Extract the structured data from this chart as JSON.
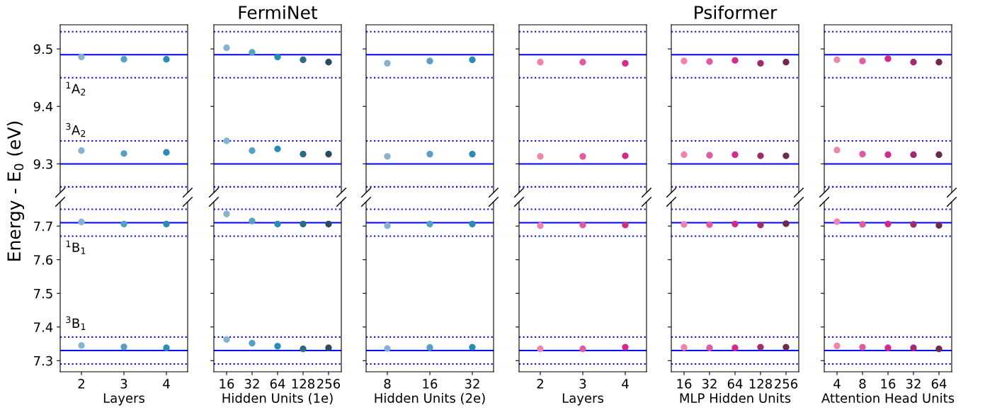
{
  "chart_data": [
    {
      "type": "scatter",
      "ylabel": "Energy - E$_{0}$ (eV)",
      "categories": [
        "2",
        "3",
        "4"
      ],
      "marker": "circle",
      "tick_labels": "y",
      "ylim": [
        9.25,
        9.542
      ],
      "yticks": [
        9.3,
        9.4,
        9.5
      ],
      "annotations": [
        "$^{1}$A$_{2}$",
        "$^{3}$A$_{2}$"
      ],
      "ref_lines": [
        {
          "axis": "y",
          "value": 9.53,
          "color": "#0000ff",
          "line_style": "dotted"
        },
        {
          "axis": "y",
          "value": 9.49,
          "color": "#0000ff",
          "line_style": "solid"
        },
        {
          "axis": "y",
          "value": 9.45,
          "color": "#0000ff",
          "line_style": "dotted"
        },
        {
          "axis": "y",
          "value": 9.34,
          "color": "#0000ff",
          "line_style": "dotted"
        },
        {
          "axis": "y",
          "value": 9.3,
          "color": "#0000ff",
          "line_style": "solid"
        },
        {
          "axis": "y",
          "value": 9.26,
          "color": "#0000ff",
          "line_style": "dotted"
        }
      ],
      "series": [
        {
          "values": [
            9.486,
            9.482,
            9.482
          ],
          "colors": [
            "#86b2d3",
            "#55a0c4",
            "#2a8bb3"
          ]
        },
        {
          "values": [
            9.323,
            9.318,
            9.32
          ],
          "colors": [
            "#86b2d3",
            "#55a0c4",
            "#2a8bb3"
          ]
        }
      ]
    },
    {
      "type": "scatter",
      "title": "FermiNet",
      "categories": [
        "16",
        "32",
        "64",
        "128",
        "256"
      ],
      "marker": "circle",
      "tick_labels": false,
      "ylim": [
        9.25,
        9.542
      ],
      "yticks": [
        9.3,
        9.4,
        9.5
      ],
      "ref_lines": [
        {
          "axis": "y",
          "value": 9.53,
          "color": "#0000ff",
          "line_style": "dotted"
        },
        {
          "axis": "y",
          "value": 9.49,
          "color": "#0000ff",
          "line_style": "solid"
        },
        {
          "axis": "y",
          "value": 9.45,
          "color": "#0000ff",
          "line_style": "dotted"
        },
        {
          "axis": "y",
          "value": 9.34,
          "color": "#0000ff",
          "line_style": "dotted"
        },
        {
          "axis": "y",
          "value": 9.3,
          "color": "#0000ff",
          "line_style": "solid"
        },
        {
          "axis": "y",
          "value": 9.26,
          "color": "#0000ff",
          "line_style": "dotted"
        }
      ],
      "series": [
        {
          "values": [
            9.502,
            9.494,
            9.486,
            9.481,
            9.477
          ],
          "colors": [
            "#86b2d3",
            "#55a0c4",
            "#2a8bb3",
            "#2a6c85",
            "#2b4a5a"
          ]
        },
        {
          "values": [
            9.34,
            9.323,
            9.326,
            9.317,
            9.317
          ],
          "colors": [
            "#86b2d3",
            "#55a0c4",
            "#2a8bb3",
            "#2a6c85",
            "#2b4a5a"
          ]
        }
      ]
    },
    {
      "type": "scatter",
      "categories": [
        "8",
        "16",
        "32"
      ],
      "marker": "circle",
      "tick_labels": false,
      "ylim": [
        9.25,
        9.542
      ],
      "yticks": [
        9.3,
        9.4,
        9.5
      ],
      "ref_lines": [
        {
          "axis": "y",
          "value": 9.53,
          "color": "#0000ff",
          "line_style": "dotted"
        },
        {
          "axis": "y",
          "value": 9.49,
          "color": "#0000ff",
          "line_style": "solid"
        },
        {
          "axis": "y",
          "value": 9.45,
          "color": "#0000ff",
          "line_style": "dotted"
        },
        {
          "axis": "y",
          "value": 9.34,
          "color": "#0000ff",
          "line_style": "dotted"
        },
        {
          "axis": "y",
          "value": 9.3,
          "color": "#0000ff",
          "line_style": "solid"
        },
        {
          "axis": "y",
          "value": 9.26,
          "color": "#0000ff",
          "line_style": "dotted"
        }
      ],
      "series": [
        {
          "values": [
            9.475,
            9.479,
            9.481
          ],
          "colors": [
            "#86b2d3",
            "#55a0c4",
            "#2a8bb3"
          ]
        },
        {
          "values": [
            9.313,
            9.317,
            9.317
          ],
          "colors": [
            "#86b2d3",
            "#55a0c4",
            "#2a8bb3"
          ]
        }
      ]
    },
    {
      "type": "scatter",
      "categories": [
        "2",
        "3",
        "4"
      ],
      "marker": "circle",
      "tick_labels": false,
      "ylim": [
        9.25,
        9.542
      ],
      "yticks": [
        9.3,
        9.4,
        9.5
      ],
      "ref_lines": [
        {
          "axis": "y",
          "value": 9.53,
          "color": "#0000ff",
          "line_style": "dotted"
        },
        {
          "axis": "y",
          "value": 9.49,
          "color": "#0000ff",
          "line_style": "solid"
        },
        {
          "axis": "y",
          "value": 9.45,
          "color": "#0000ff",
          "line_style": "dotted"
        },
        {
          "axis": "y",
          "value": 9.34,
          "color": "#0000ff",
          "line_style": "dotted"
        },
        {
          "axis": "y",
          "value": 9.3,
          "color": "#0000ff",
          "line_style": "solid"
        },
        {
          "axis": "y",
          "value": 9.26,
          "color": "#0000ff",
          "line_style": "dotted"
        }
      ],
      "series": [
        {
          "values": [
            9.477,
            9.477,
            9.475
          ],
          "colors": [
            "#ec86ae",
            "#e05ba0",
            "#d42a8c"
          ]
        },
        {
          "values": [
            9.313,
            9.313,
            9.314
          ],
          "colors": [
            "#ec86ae",
            "#e05ba0",
            "#d42a8c"
          ]
        }
      ]
    },
    {
      "type": "scatter",
      "title": "Psiformer",
      "categories": [
        "16",
        "32",
        "64",
        "128",
        "256"
      ],
      "marker": "circle",
      "tick_labels": false,
      "ylim": [
        9.25,
        9.542
      ],
      "yticks": [
        9.3,
        9.4,
        9.5
      ],
      "ref_lines": [
        {
          "axis": "y",
          "value": 9.53,
          "color": "#0000ff",
          "line_style": "dotted"
        },
        {
          "axis": "y",
          "value": 9.49,
          "color": "#0000ff",
          "line_style": "solid"
        },
        {
          "axis": "y",
          "value": 9.45,
          "color": "#0000ff",
          "line_style": "dotted"
        },
        {
          "axis": "y",
          "value": 9.34,
          "color": "#0000ff",
          "line_style": "dotted"
        },
        {
          "axis": "y",
          "value": 9.3,
          "color": "#0000ff",
          "line_style": "solid"
        },
        {
          "axis": "y",
          "value": 9.26,
          "color": "#0000ff",
          "line_style": "dotted"
        }
      ],
      "series": [
        {
          "values": [
            9.479,
            9.478,
            9.48,
            9.475,
            9.477
          ],
          "colors": [
            "#ec86ae",
            "#e05ba0",
            "#d42a8c",
            "#a02c6e",
            "#6b2a4e"
          ]
        },
        {
          "values": [
            9.316,
            9.315,
            9.316,
            9.314,
            9.314
          ],
          "colors": [
            "#ec86ae",
            "#e05ba0",
            "#d42a8c",
            "#a02c6e",
            "#6b2a4e"
          ]
        }
      ]
    },
    {
      "type": "scatter",
      "categories": [
        "4",
        "8",
        "16",
        "32",
        "64"
      ],
      "marker": "circle",
      "tick_labels": false,
      "ylim": [
        9.25,
        9.542
      ],
      "yticks": [
        9.3,
        9.4,
        9.5
      ],
      "ref_lines": [
        {
          "axis": "y",
          "value": 9.53,
          "color": "#0000ff",
          "line_style": "dotted"
        },
        {
          "axis": "y",
          "value": 9.49,
          "color": "#0000ff",
          "line_style": "solid"
        },
        {
          "axis": "y",
          "value": 9.45,
          "color": "#0000ff",
          "line_style": "dotted"
        },
        {
          "axis": "y",
          "value": 9.34,
          "color": "#0000ff",
          "line_style": "dotted"
        },
        {
          "axis": "y",
          "value": 9.3,
          "color": "#0000ff",
          "line_style": "solid"
        },
        {
          "axis": "y",
          "value": 9.26,
          "color": "#0000ff",
          "line_style": "dotted"
        }
      ],
      "series": [
        {
          "values": [
            9.481,
            9.479,
            9.483,
            9.477,
            9.477
          ],
          "colors": [
            "#ec86ae",
            "#e05ba0",
            "#d42a8c",
            "#a02c6e",
            "#6b2a4e"
          ]
        },
        {
          "values": [
            9.324,
            9.317,
            9.316,
            9.316,
            9.316
          ],
          "colors": [
            "#ec86ae",
            "#e05ba0",
            "#d42a8c",
            "#a02c6e",
            "#6b2a4e"
          ]
        }
      ]
    },
    {
      "type": "scatter",
      "xlabel": "Layers",
      "categories": [
        "2",
        "3",
        "4"
      ],
      "marker": "circle",
      "ylim": [
        7.267,
        7.772
      ],
      "yticks": [
        7.3,
        7.4,
        7.5,
        7.6,
        7.7
      ],
      "annotations": [
        "$^{1}$B$_{1}$",
        "$^{3}$B$_{1}$"
      ],
      "ref_lines": [
        {
          "axis": "y",
          "value": 7.75,
          "color": "#0000ff",
          "line_style": "dotted"
        },
        {
          "axis": "y",
          "value": 7.71,
          "color": "#0000ff",
          "line_style": "solid"
        },
        {
          "axis": "y",
          "value": 7.67,
          "color": "#0000ff",
          "line_style": "dotted"
        },
        {
          "axis": "y",
          "value": 7.37,
          "color": "#0000ff",
          "line_style": "dotted"
        },
        {
          "axis": "y",
          "value": 7.33,
          "color": "#0000ff",
          "line_style": "solid"
        },
        {
          "axis": "y",
          "value": 7.29,
          "color": "#0000ff",
          "line_style": "dotted"
        }
      ],
      "series": [
        {
          "values": [
            7.712,
            7.706,
            7.706
          ],
          "colors": [
            "#86b2d3",
            "#55a0c4",
            "#2a8bb3"
          ]
        },
        {
          "values": [
            7.345,
            7.341,
            7.338
          ],
          "colors": [
            "#86b2d3",
            "#55a0c4",
            "#2a8bb3"
          ]
        }
      ]
    },
    {
      "type": "scatter",
      "xlabel": "Hidden Units (1e)",
      "categories": [
        "16",
        "32",
        "64",
        "128",
        "256"
      ],
      "marker": "circle",
      "tick_labels": "x",
      "ylim": [
        7.267,
        7.772
      ],
      "yticks": [
        7.3,
        7.4,
        7.5,
        7.6,
        7.7
      ],
      "ref_lines": [
        {
          "axis": "y",
          "value": 7.75,
          "color": "#0000ff",
          "line_style": "dotted"
        },
        {
          "axis": "y",
          "value": 7.71,
          "color": "#0000ff",
          "line_style": "solid"
        },
        {
          "axis": "y",
          "value": 7.67,
          "color": "#0000ff",
          "line_style": "dotted"
        },
        {
          "axis": "y",
          "value": 7.37,
          "color": "#0000ff",
          "line_style": "dotted"
        },
        {
          "axis": "y",
          "value": 7.33,
          "color": "#0000ff",
          "line_style": "solid"
        },
        {
          "axis": "y",
          "value": 7.29,
          "color": "#0000ff",
          "line_style": "dotted"
        }
      ],
      "series": [
        {
          "values": [
            7.736,
            7.715,
            7.706,
            7.706,
            7.706
          ],
          "colors": [
            "#86b2d3",
            "#55a0c4",
            "#2a8bb3",
            "#2a6c85",
            "#2b4a5a"
          ]
        },
        {
          "values": [
            7.363,
            7.352,
            7.343,
            7.335,
            7.338
          ],
          "colors": [
            "#86b2d3",
            "#55a0c4",
            "#2a8bb3",
            "#2a6c85",
            "#2b4a5a"
          ]
        }
      ]
    },
    {
      "type": "scatter",
      "xlabel": "Hidden Units (2e)",
      "categories": [
        "8",
        "16",
        "32"
      ],
      "marker": "circle",
      "tick_labels": "x",
      "ylim": [
        7.267,
        7.772
      ],
      "yticks": [
        7.3,
        7.4,
        7.5,
        7.6,
        7.7
      ],
      "ref_lines": [
        {
          "axis": "y",
          "value": 7.75,
          "color": "#0000ff",
          "line_style": "dotted"
        },
        {
          "axis": "y",
          "value": 7.71,
          "color": "#0000ff",
          "line_style": "solid"
        },
        {
          "axis": "y",
          "value": 7.67,
          "color": "#0000ff",
          "line_style": "dotted"
        },
        {
          "axis": "y",
          "value": 7.37,
          "color": "#0000ff",
          "line_style": "dotted"
        },
        {
          "axis": "y",
          "value": 7.33,
          "color": "#0000ff",
          "line_style": "solid"
        },
        {
          "axis": "y",
          "value": 7.29,
          "color": "#0000ff",
          "line_style": "dotted"
        }
      ],
      "series": [
        {
          "values": [
            7.701,
            7.706,
            7.706
          ],
          "colors": [
            "#86b2d3",
            "#55a0c4",
            "#2a8bb3"
          ]
        },
        {
          "values": [
            7.336,
            7.339,
            7.34
          ],
          "colors": [
            "#86b2d3",
            "#55a0c4",
            "#2a8bb3"
          ]
        }
      ]
    },
    {
      "type": "scatter",
      "xlabel": "Layers",
      "categories": [
        "2",
        "3",
        "4"
      ],
      "marker": "circle",
      "tick_labels": "x",
      "ylim": [
        7.267,
        7.772
      ],
      "yticks": [
        7.3,
        7.4,
        7.5,
        7.6,
        7.7
      ],
      "ref_lines": [
        {
          "axis": "y",
          "value": 7.75,
          "color": "#0000ff",
          "line_style": "dotted"
        },
        {
          "axis": "y",
          "value": 7.71,
          "color": "#0000ff",
          "line_style": "solid"
        },
        {
          "axis": "y",
          "value": 7.67,
          "color": "#0000ff",
          "line_style": "dotted"
        },
        {
          "axis": "y",
          "value": 7.37,
          "color": "#0000ff",
          "line_style": "dotted"
        },
        {
          "axis": "y",
          "value": 7.33,
          "color": "#0000ff",
          "line_style": "solid"
        },
        {
          "axis": "y",
          "value": 7.29,
          "color": "#0000ff",
          "line_style": "dotted"
        }
      ],
      "series": [
        {
          "values": [
            7.701,
            7.703,
            7.703
          ],
          "colors": [
            "#ec86ae",
            "#e05ba0",
            "#d42a8c"
          ]
        },
        {
          "values": [
            7.335,
            7.335,
            7.34
          ],
          "colors": [
            "#ec86ae",
            "#e05ba0",
            "#d42a8c"
          ]
        }
      ]
    },
    {
      "type": "scatter",
      "xlabel": "MLP Hidden Units",
      "categories": [
        "16",
        "32",
        "64",
        "128",
        "256"
      ],
      "marker": "circle",
      "tick_labels": "x",
      "ylim": [
        7.267,
        7.772
      ],
      "yticks": [
        7.3,
        7.4,
        7.5,
        7.6,
        7.7
      ],
      "ref_lines": [
        {
          "axis": "y",
          "value": 7.75,
          "color": "#0000ff",
          "line_style": "dotted"
        },
        {
          "axis": "y",
          "value": 7.71,
          "color": "#0000ff",
          "line_style": "solid"
        },
        {
          "axis": "y",
          "value": 7.67,
          "color": "#0000ff",
          "line_style": "dotted"
        },
        {
          "axis": "y",
          "value": 7.37,
          "color": "#0000ff",
          "line_style": "dotted"
        },
        {
          "axis": "y",
          "value": 7.33,
          "color": "#0000ff",
          "line_style": "solid"
        },
        {
          "axis": "y",
          "value": 7.29,
          "color": "#0000ff",
          "line_style": "dotted"
        }
      ],
      "series": [
        {
          "values": [
            7.705,
            7.704,
            7.706,
            7.703,
            7.707
          ],
          "colors": [
            "#ec86ae",
            "#e05ba0",
            "#d42a8c",
            "#a02c6e",
            "#6b2a4e"
          ]
        },
        {
          "values": [
            7.339,
            7.338,
            7.338,
            7.34,
            7.34
          ],
          "colors": [
            "#ec86ae",
            "#e05ba0",
            "#d42a8c",
            "#a02c6e",
            "#6b2a4e"
          ]
        }
      ]
    },
    {
      "type": "scatter",
      "xlabel": "Attention Head Units",
      "categories": [
        "4",
        "8",
        "16",
        "32",
        "64"
      ],
      "marker": "circle",
      "tick_labels": "x",
      "ylim": [
        7.267,
        7.772
      ],
      "yticks": [
        7.3,
        7.4,
        7.5,
        7.6,
        7.7
      ],
      "ref_lines": [
        {
          "axis": "y",
          "value": 7.75,
          "color": "#0000ff",
          "line_style": "dotted"
        },
        {
          "axis": "y",
          "value": 7.71,
          "color": "#0000ff",
          "line_style": "solid"
        },
        {
          "axis": "y",
          "value": 7.67,
          "color": "#0000ff",
          "line_style": "dotted"
        },
        {
          "axis": "y",
          "value": 7.37,
          "color": "#0000ff",
          "line_style": "dotted"
        },
        {
          "axis": "y",
          "value": 7.33,
          "color": "#0000ff",
          "line_style": "solid"
        },
        {
          "axis": "y",
          "value": 7.29,
          "color": "#0000ff",
          "line_style": "dotted"
        }
      ],
      "series": [
        {
          "values": [
            7.713,
            7.705,
            7.706,
            7.705,
            7.702
          ],
          "colors": [
            "#ec86ae",
            "#e05ba0",
            "#d42a8c",
            "#a02c6e",
            "#6b2a4e"
          ]
        },
        {
          "values": [
            7.344,
            7.34,
            7.338,
            7.338,
            7.335
          ],
          "colors": [
            "#ec86ae",
            "#e05ba0",
            "#d42a8c",
            "#a02c6e",
            "#6b2a4e"
          ]
        }
      ]
    }
  ]
}
